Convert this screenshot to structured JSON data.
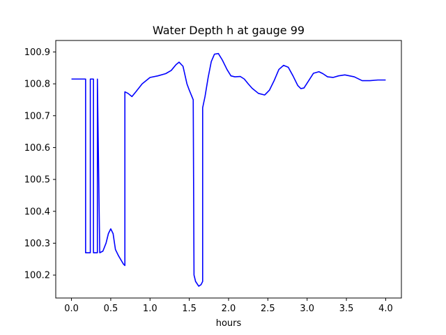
{
  "chart_data": {
    "type": "line",
    "title": "Water Depth h at gauge 99",
    "xlabel": "hours",
    "ylabel": "",
    "xlim": [
      -0.2,
      4.2
    ],
    "ylim": [
      100.128,
      100.936
    ],
    "x_ticks": [
      0.0,
      0.5,
      1.0,
      1.5,
      2.0,
      2.5,
      3.0,
      3.5,
      4.0
    ],
    "x_tick_labels": [
      "0.0",
      "0.5",
      "1.0",
      "1.5",
      "2.0",
      "2.5",
      "3.0",
      "3.5",
      "4.0"
    ],
    "y_ticks": [
      100.2,
      100.3,
      100.4,
      100.5,
      100.6,
      100.7,
      100.8,
      100.9
    ],
    "y_tick_labels": [
      "100.2",
      "100.3",
      "100.4",
      "100.5",
      "100.6",
      "100.7",
      "100.8",
      "100.9"
    ],
    "grid": false,
    "series": [
      {
        "color": "#0000ff",
        "x": [
          0.0,
          0.18,
          0.18,
          0.24,
          0.24,
          0.28,
          0.28,
          0.33,
          0.33,
          0.36,
          0.4,
          0.44,
          0.47,
          0.5,
          0.53,
          0.56,
          0.6,
          0.66,
          0.68,
          0.68,
          0.72,
          0.77,
          0.82,
          0.9,
          1.0,
          1.1,
          1.2,
          1.27,
          1.33,
          1.37,
          1.42,
          1.47,
          1.5,
          1.55,
          1.56,
          1.58,
          1.62,
          1.65,
          1.67,
          1.67,
          1.7,
          1.74,
          1.78,
          1.82,
          1.87,
          1.92,
          1.98,
          2.03,
          2.08,
          2.15,
          2.2,
          2.25,
          2.3,
          2.38,
          2.46,
          2.52,
          2.58,
          2.64,
          2.7,
          2.76,
          2.82,
          2.88,
          2.92,
          2.96,
          3.02,
          3.08,
          3.15,
          3.2,
          3.26,
          3.33,
          3.4,
          3.48,
          3.6,
          3.7,
          3.8,
          3.9,
          4.0
        ],
        "y": [
          100.815,
          100.815,
          100.27,
          100.27,
          100.815,
          100.815,
          100.27,
          100.27,
          100.815,
          100.27,
          100.275,
          100.3,
          100.33,
          100.345,
          100.33,
          100.28,
          100.26,
          100.235,
          100.23,
          100.775,
          100.77,
          100.76,
          100.775,
          100.8,
          100.82,
          100.825,
          100.832,
          100.842,
          100.86,
          100.868,
          100.855,
          100.8,
          100.78,
          100.75,
          100.2,
          100.18,
          100.165,
          100.17,
          100.18,
          100.725,
          100.76,
          100.82,
          100.87,
          100.893,
          100.895,
          100.875,
          100.845,
          100.825,
          100.822,
          100.823,
          100.815,
          100.8,
          100.786,
          100.77,
          100.765,
          100.78,
          100.81,
          100.845,
          100.858,
          100.852,
          100.825,
          100.795,
          100.785,
          100.787,
          100.81,
          100.833,
          100.838,
          100.832,
          100.822,
          100.82,
          100.825,
          100.828,
          100.822,
          100.81,
          100.81,
          100.812,
          100.812
        ]
      }
    ]
  }
}
